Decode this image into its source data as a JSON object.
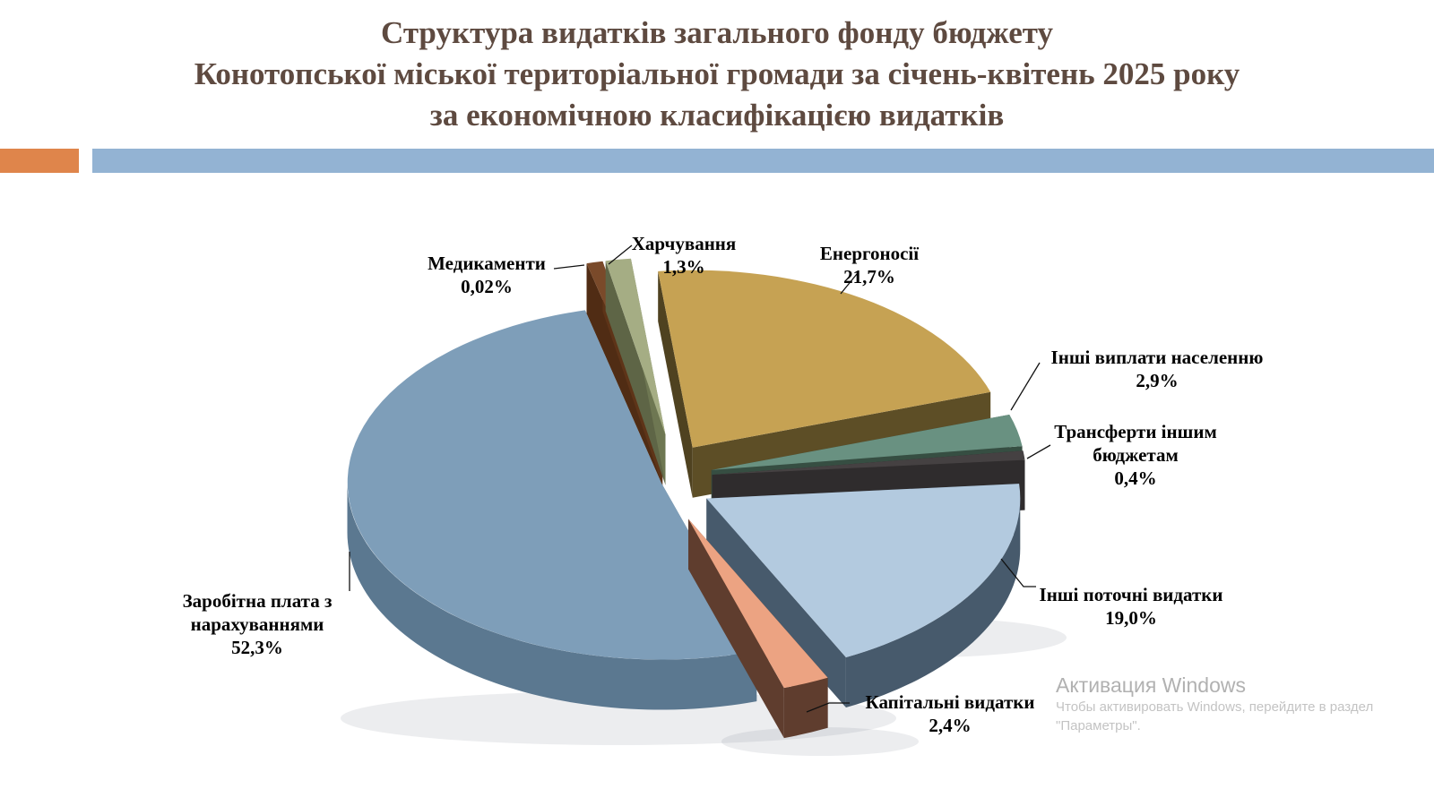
{
  "slide": {
    "title_lines": [
      "Структура видатків загального фонду бюджету",
      "Конотопської міської територіальної громади за січень-квітень 2025 року",
      "за економічною класифікацією видатків"
    ],
    "title_color": "#5e4a40",
    "accent_orange": "#df854b",
    "accent_blue": "#93b3d3"
  },
  "chart_data": {
    "type": "pie",
    "style": "exploded-3d",
    "legend_position": "none",
    "start_angle_deg": -14,
    "unit": "%",
    "slices": [
      {
        "id": "medicines",
        "name": "Медикаменти",
        "value": 0.02,
        "pct_label": "0,02%",
        "color": "#7a4a2a",
        "side": "#5e3418"
      },
      {
        "id": "food",
        "name": "Харчування",
        "value": 1.3,
        "pct_label": "1,3%",
        "color": "#a5ad84",
        "side": "#6e7752"
      },
      {
        "id": "energy",
        "name": "Енергоносії",
        "value": 21.7,
        "pct_label": "21,7%",
        "color": "#c6a253",
        "side": "#5d4e26"
      },
      {
        "id": "other-payments",
        "name": "Інші виплати населенню",
        "value": 2.9,
        "pct_label": "2,9%",
        "color": "#699181",
        "side": "#364e42"
      },
      {
        "id": "transfers",
        "name": "Трансферти іншим бюджетам",
        "value": 0.4,
        "pct_label": "0,4%",
        "color": "#454142",
        "side": "#2f2c2d"
      },
      {
        "id": "other-current",
        "name": "Інші поточні видатки",
        "value": 19.0,
        "pct_label": "19,0%",
        "color": "#b3cadf",
        "side": "#475a6c"
      },
      {
        "id": "capital",
        "name": "Капітальні видатки",
        "value": 2.4,
        "pct_label": "2,4%",
        "color": "#eca382",
        "side": "#5f3d2e"
      },
      {
        "id": "wages",
        "name": "Заробітна плата з нарахуваннями",
        "value": 52.3,
        "pct_label": "52,3%",
        "color": "#7e9eb9",
        "side": "#5b7890"
      }
    ]
  },
  "watermark": {
    "line1": "Активация Windows",
    "line2": "Чтобы активировать Windows, перейдите в раздел",
    "line3": "\"Параметры\"."
  }
}
